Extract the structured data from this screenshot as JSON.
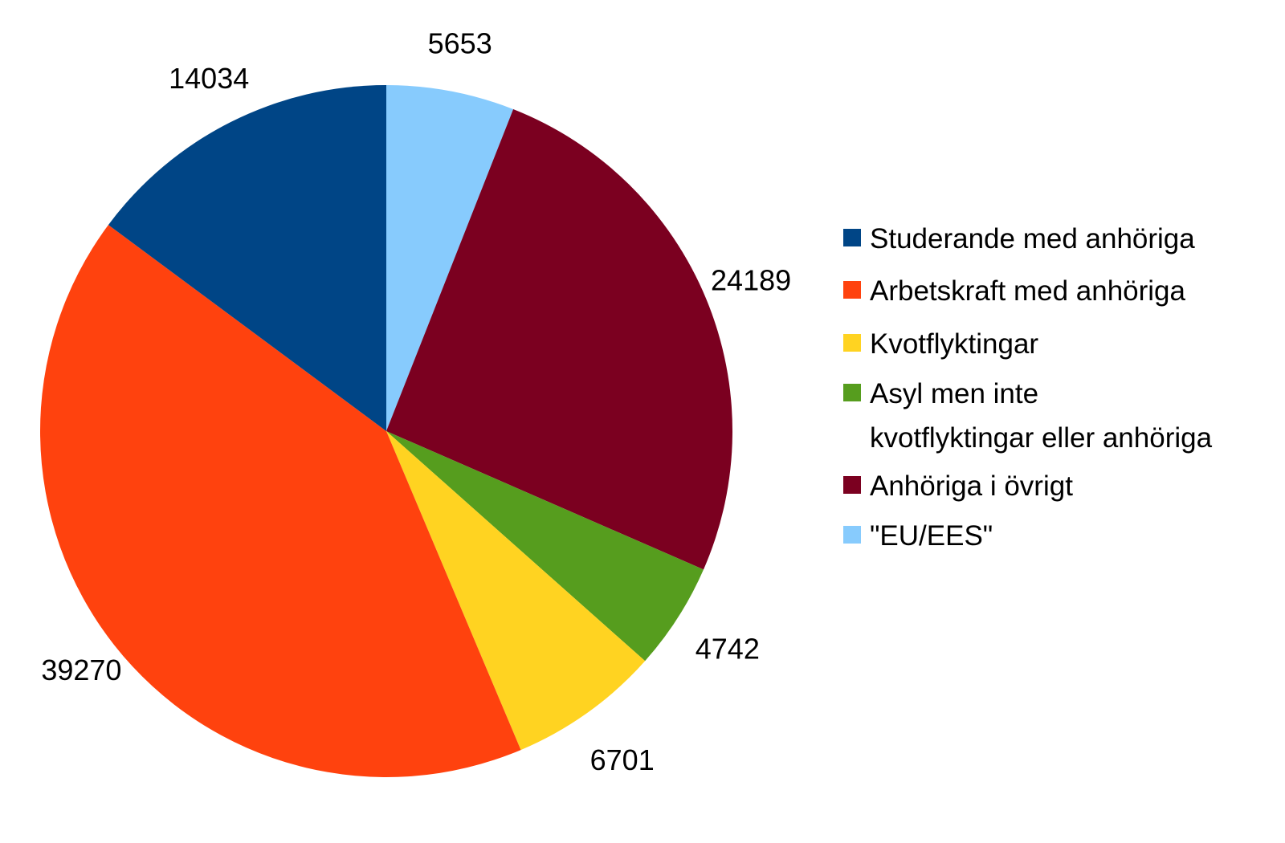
{
  "chart_data": {
    "type": "pie",
    "slices": [
      {
        "label": "\"EU/EES\"",
        "value": 5653,
        "color": "#87CBFD",
        "value_label": "5653"
      },
      {
        "label": "Anhöriga i övrigt",
        "value": 24189,
        "color": "#7B0020",
        "value_label": "24189"
      },
      {
        "label": "Asyl men inte kvotflyktingar eller anhöriga",
        "value": 4742,
        "color": "#569D1E",
        "value_label": "4742"
      },
      {
        "label": "Kvotflyktingar",
        "value": 6701,
        "color": "#FFD321",
        "value_label": "6701"
      },
      {
        "label": "Arbetskraft med anhöriga",
        "value": 39270,
        "color": "#FF420E",
        "value_label": "39270"
      },
      {
        "label": "Studerande med anhöriga",
        "value": 14034,
        "color": "#004586",
        "value_label": "14034"
      }
    ],
    "start": "12 o'clock",
    "direction": "clockwise",
    "legend_position": "right",
    "legend": [
      {
        "lines": [
          "Studerande med anhöriga"
        ],
        "color": "#004586"
      },
      {
        "lines": [
          "Arbetskraft med anhöriga"
        ],
        "color": "#FF420E"
      },
      {
        "lines": [
          "Kvotflyktingar"
        ],
        "color": "#FFD321"
      },
      {
        "lines": [
          "Asyl men inte",
          "kvotflyktingar eller anhöriga"
        ],
        "color": "#569D1E"
      },
      {
        "lines": [
          "Anhöriga i övrigt"
        ],
        "color": "#7B0020"
      },
      {
        "lines": [
          "\"EU/EES\""
        ],
        "color": "#87CBFD"
      }
    ]
  }
}
